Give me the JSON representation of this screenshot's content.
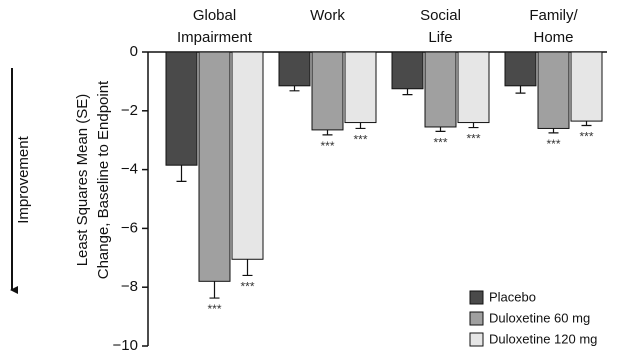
{
  "chart_data": {
    "type": "bar",
    "categories": [
      "Global Impairment",
      "Work",
      "Social Life",
      "Family/ Home"
    ],
    "series": [
      {
        "name": "Placebo",
        "color": "#4a4a4a",
        "values": [
          -3.85,
          -1.15,
          -1.25,
          -1.15
        ],
        "errors": [
          0.55,
          0.17,
          0.2,
          0.25
        ],
        "significance": [
          null,
          null,
          null,
          null
        ]
      },
      {
        "name": "Duloxetine 60 mg",
        "color": "#a0a0a0",
        "values": [
          -7.8,
          -2.65,
          -2.55,
          -2.6
        ],
        "errors": [
          0.57,
          0.17,
          0.15,
          0.15
        ],
        "significance": [
          "***",
          "***",
          "***",
          "***"
        ]
      },
      {
        "name": "Duloxetine 120 mg",
        "color": "#e6e6e6",
        "values": [
          -7.05,
          -2.4,
          -2.4,
          -2.35
        ],
        "errors": [
          0.55,
          0.2,
          0.17,
          0.15
        ],
        "significance": [
          "***",
          "***",
          "***",
          "***"
        ]
      }
    ],
    "ylabel": [
      "Least Squares Mean (SE)",
      "Change, Baseline to Endpoint"
    ],
    "annotation": "Improvement",
    "ylim": [
      -10,
      0
    ],
    "yticks": [
      0,
      {
        "value": -2,
        "label": "−2"
      },
      {
        "value": -4,
        "label": "−4"
      },
      {
        "value": -6,
        "label": "−6"
      },
      {
        "value": -8,
        "label": "−8"
      },
      {
        "value": -10,
        "label": "−10"
      }
    ],
    "legend": "lower right"
  }
}
